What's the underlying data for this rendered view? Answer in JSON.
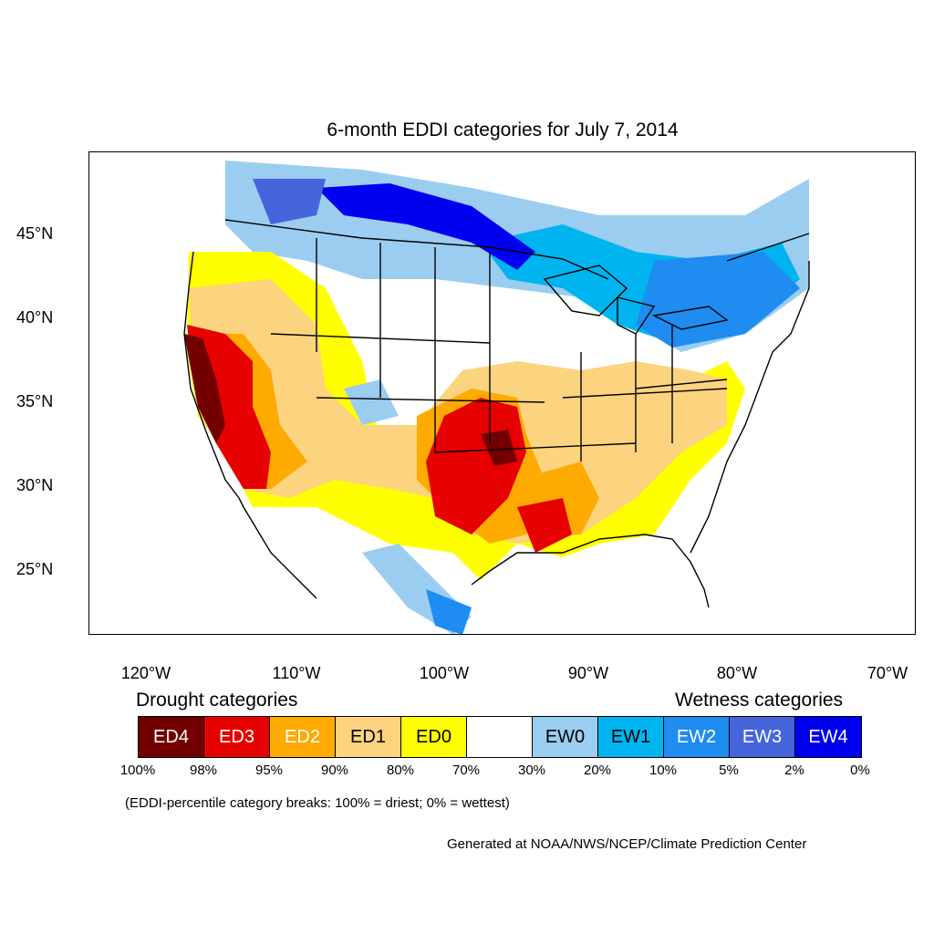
{
  "title": "6-month EDDI categories for July 7, 2014",
  "lat_labels": [
    "45°N",
    "40°N",
    "35°N",
    "30°N",
    "25°N"
  ],
  "lon_labels": [
    "120°W",
    "110°W",
    "100°W",
    "90°W",
    "80°W",
    "70°W"
  ],
  "drought_heading": "Drought categories",
  "wetness_heading": "Wetness categories",
  "legend": [
    {
      "label": "ED4",
      "color": "#730000",
      "text_color": "#ffffff"
    },
    {
      "label": "ED3",
      "color": "#e60000",
      "text_color": "#ffffff"
    },
    {
      "label": "ED2",
      "color": "#ffaa00",
      "text_color": "#ffffff"
    },
    {
      "label": "ED1",
      "color": "#fcd37f",
      "text_color": "#000000"
    },
    {
      "label": "ED0",
      "color": "#ffff00",
      "text_color": "#000000"
    },
    {
      "label": "",
      "color": "#ffffff",
      "text_color": "#000000"
    },
    {
      "label": "EW0",
      "color": "#9bcdf0",
      "text_color": "#000000"
    },
    {
      "label": "EW1",
      "color": "#00b4f0",
      "text_color": "#000000"
    },
    {
      "label": "EW2",
      "color": "#1e8cf0",
      "text_color": "#ffffff"
    },
    {
      "label": "EW3",
      "color": "#4664dc",
      "text_color": "#ffffff"
    },
    {
      "label": "EW4",
      "color": "#0000f0",
      "text_color": "#ffffff"
    }
  ],
  "percent_breaks": [
    "100%",
    "98%",
    "95%",
    "90%",
    "80%",
    "70%",
    "30%",
    "20%",
    "10%",
    "5%",
    "2%",
    "0%"
  ],
  "breaks_note": "(EDDI-percentile category breaks: 100% = driest; 0% = wettest)",
  "credit": "Generated at NOAA/NWS/NCEP/Climate Prediction Center"
}
